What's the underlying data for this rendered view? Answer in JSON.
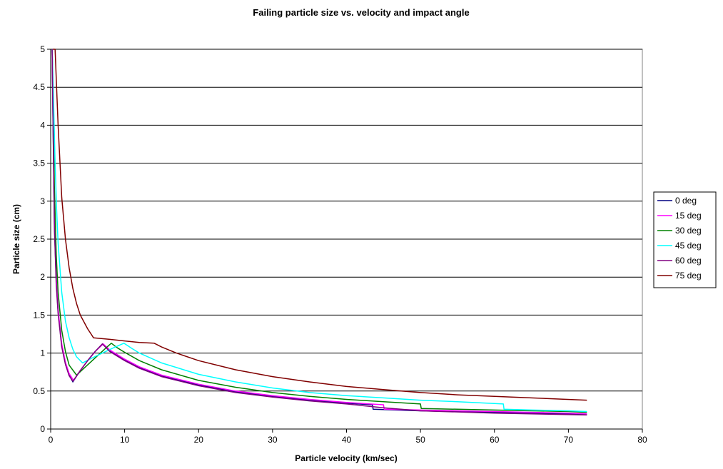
{
  "chart_data": {
    "type": "line",
    "title": "Failing particle size vs. velocity and impact angle",
    "xlabel": "Particle velocity (km/sec)",
    "ylabel": "Particle size (cm)",
    "xlim": [
      0,
      80
    ],
    "ylim": [
      0,
      5
    ],
    "xticks": [
      0,
      10,
      20,
      30,
      40,
      50,
      60,
      70,
      80
    ],
    "yticks": [
      0,
      0.5,
      1,
      1.5,
      2,
      2.5,
      3,
      3.5,
      4,
      4.5,
      5
    ],
    "grid": "horizontal",
    "legend_position": "right",
    "series": [
      {
        "name": "0 deg",
        "color": "#000080",
        "points": [
          [
            0.2,
            5.0
          ],
          [
            0.3,
            4.2
          ],
          [
            0.5,
            2.7
          ],
          [
            0.75,
            1.95
          ],
          [
            1.0,
            1.55
          ],
          [
            1.5,
            1.1
          ],
          [
            2.0,
            0.86
          ],
          [
            2.5,
            0.71
          ],
          [
            3.0,
            0.62
          ],
          [
            4.0,
            0.77
          ],
          [
            5.0,
            0.9
          ],
          [
            6.0,
            1.02
          ],
          [
            7.0,
            1.12
          ],
          [
            8.0,
            1.03
          ],
          [
            10.0,
            0.91
          ],
          [
            12.0,
            0.81
          ],
          [
            15.0,
            0.7
          ],
          [
            20.0,
            0.58
          ],
          [
            25.0,
            0.49
          ],
          [
            30.0,
            0.43
          ],
          [
            35.0,
            0.38
          ],
          [
            40.0,
            0.34
          ],
          [
            43.5,
            0.32
          ],
          [
            43.6,
            0.26
          ],
          [
            50.0,
            0.24
          ],
          [
            60.0,
            0.22
          ],
          [
            70.0,
            0.2
          ],
          [
            72.5,
            0.19
          ]
        ]
      },
      {
        "name": "15 deg",
        "color": "#FF00FF",
        "points": [
          [
            0.2,
            5.0
          ],
          [
            0.3,
            4.3
          ],
          [
            0.5,
            2.8
          ],
          [
            0.75,
            2.0
          ],
          [
            1.0,
            1.58
          ],
          [
            1.5,
            1.12
          ],
          [
            2.0,
            0.88
          ],
          [
            2.5,
            0.73
          ],
          [
            3.1,
            0.64
          ],
          [
            4.0,
            0.77
          ],
          [
            5.0,
            0.9
          ],
          [
            6.0,
            1.02
          ],
          [
            7.1,
            1.12
          ],
          [
            8.0,
            1.04
          ],
          [
            10.0,
            0.92
          ],
          [
            12.0,
            0.82
          ],
          [
            15.0,
            0.71
          ],
          [
            20.0,
            0.59
          ],
          [
            25.0,
            0.5
          ],
          [
            30.0,
            0.44
          ],
          [
            35.0,
            0.39
          ],
          [
            40.0,
            0.35
          ],
          [
            45.0,
            0.32
          ],
          [
            45.1,
            0.26
          ],
          [
            50.0,
            0.25
          ],
          [
            60.0,
            0.23
          ],
          [
            70.0,
            0.21
          ],
          [
            72.5,
            0.2
          ]
        ]
      },
      {
        "name": "30 deg",
        "color": "#008000",
        "points": [
          [
            0.2,
            5.0
          ],
          [
            0.35,
            4.2
          ],
          [
            0.5,
            3.2
          ],
          [
            0.75,
            2.3
          ],
          [
            1.0,
            1.8
          ],
          [
            1.5,
            1.3
          ],
          [
            2.0,
            1.02
          ],
          [
            2.5,
            0.84
          ],
          [
            3.5,
            0.71
          ],
          [
            4.5,
            0.8
          ],
          [
            5.5,
            0.89
          ],
          [
            6.5,
            0.98
          ],
          [
            7.5,
            1.07
          ],
          [
            8.2,
            1.13
          ],
          [
            9.0,
            1.07
          ],
          [
            10.0,
            1.01
          ],
          [
            12.0,
            0.9
          ],
          [
            15.0,
            0.78
          ],
          [
            20.0,
            0.64
          ],
          [
            25.0,
            0.55
          ],
          [
            30.0,
            0.48
          ],
          [
            35.0,
            0.43
          ],
          [
            40.0,
            0.39
          ],
          [
            45.0,
            0.36
          ],
          [
            50.0,
            0.33
          ],
          [
            50.1,
            0.27
          ],
          [
            55.0,
            0.26
          ],
          [
            60.0,
            0.25
          ],
          [
            70.0,
            0.23
          ],
          [
            72.5,
            0.22
          ]
        ]
      },
      {
        "name": "45 deg",
        "color": "#00FFFF",
        "points": [
          [
            0.2,
            5.0
          ],
          [
            0.4,
            4.3
          ],
          [
            0.6,
            3.5
          ],
          [
            0.8,
            2.9
          ],
          [
            1.0,
            2.45
          ],
          [
            1.5,
            1.8
          ],
          [
            2.0,
            1.42
          ],
          [
            2.5,
            1.2
          ],
          [
            3.0,
            1.05
          ],
          [
            3.5,
            0.95
          ],
          [
            4.3,
            0.87
          ],
          [
            5.5,
            0.93
          ],
          [
            7.0,
            1.0
          ],
          [
            8.5,
            1.07
          ],
          [
            9.9,
            1.13
          ],
          [
            11.0,
            1.06
          ],
          [
            12.0,
            1.0
          ],
          [
            15.0,
            0.87
          ],
          [
            20.0,
            0.72
          ],
          [
            25.0,
            0.62
          ],
          [
            30.0,
            0.54
          ],
          [
            35.0,
            0.48
          ],
          [
            40.0,
            0.44
          ],
          [
            45.0,
            0.41
          ],
          [
            50.0,
            0.38
          ],
          [
            55.0,
            0.36
          ],
          [
            61.2,
            0.33
          ],
          [
            61.3,
            0.26
          ],
          [
            65.0,
            0.25
          ],
          [
            70.0,
            0.24
          ],
          [
            72.5,
            0.23
          ]
        ]
      },
      {
        "name": "60 deg",
        "color": "#800080",
        "points": [
          [
            0.2,
            5.0
          ],
          [
            0.3,
            4.15
          ],
          [
            0.5,
            2.65
          ],
          [
            0.75,
            1.9
          ],
          [
            1.0,
            1.52
          ],
          [
            1.5,
            1.08
          ],
          [
            2.0,
            0.85
          ],
          [
            2.5,
            0.7
          ],
          [
            3.0,
            0.63
          ],
          [
            4.0,
            0.77
          ],
          [
            5.0,
            0.9
          ],
          [
            6.0,
            1.02
          ],
          [
            7.0,
            1.12
          ],
          [
            8.0,
            1.02
          ],
          [
            10.0,
            0.9
          ],
          [
            12.0,
            0.8
          ],
          [
            15.0,
            0.69
          ],
          [
            20.0,
            0.57
          ],
          [
            25.0,
            0.48
          ],
          [
            30.0,
            0.42
          ],
          [
            35.0,
            0.37
          ],
          [
            40.0,
            0.33
          ],
          [
            45.0,
            0.28
          ],
          [
            50.0,
            0.24
          ],
          [
            60.0,
            0.21
          ],
          [
            70.0,
            0.19
          ],
          [
            72.5,
            0.185
          ]
        ]
      },
      {
        "name": "75 deg",
        "color": "#800000",
        "points": [
          [
            0.3,
            5.0
          ],
          [
            0.6,
            5.0
          ],
          [
            1.0,
            4.0
          ],
          [
            1.5,
            3.05
          ],
          [
            2.0,
            2.5
          ],
          [
            2.5,
            2.12
          ],
          [
            3.0,
            1.85
          ],
          [
            3.5,
            1.65
          ],
          [
            4.0,
            1.5
          ],
          [
            5.0,
            1.32
          ],
          [
            5.8,
            1.2
          ],
          [
            8.0,
            1.18
          ],
          [
            10.0,
            1.16
          ],
          [
            12.0,
            1.14
          ],
          [
            14.0,
            1.13
          ],
          [
            15.0,
            1.08
          ],
          [
            17.0,
            1.0
          ],
          [
            20.0,
            0.9
          ],
          [
            25.0,
            0.78
          ],
          [
            30.0,
            0.69
          ],
          [
            35.0,
            0.62
          ],
          [
            40.0,
            0.56
          ],
          [
            45.0,
            0.52
          ],
          [
            50.0,
            0.48
          ],
          [
            55.0,
            0.45
          ],
          [
            60.0,
            0.43
          ],
          [
            65.0,
            0.41
          ],
          [
            72.5,
            0.38
          ]
        ]
      }
    ]
  }
}
